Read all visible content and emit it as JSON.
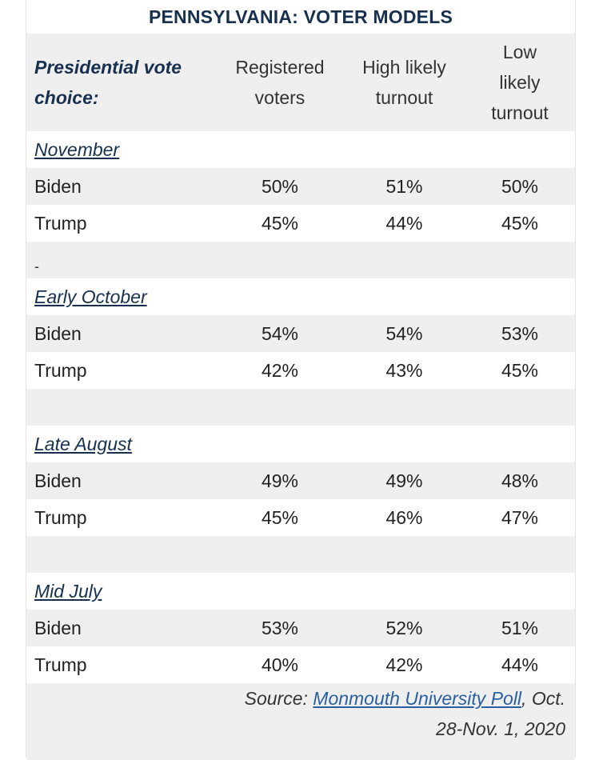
{
  "title": "PENNSYLVANIA: VOTER MODELS",
  "header": {
    "label_line1": "Presidential vote",
    "label_line2": "choice:",
    "col1_line1": "Registered",
    "col1_line2": "voters",
    "col2_line1": "High likely",
    "col2_line2": "turnout",
    "col3_line1": "Low",
    "col3_line2": "likely",
    "col3_line3": "turnout"
  },
  "periods": [
    {
      "name": "November",
      "rows": [
        {
          "candidate": "Biden",
          "registered": "50%",
          "high": "51%",
          "low": "50%"
        },
        {
          "candidate": "Trump",
          "registered": "45%",
          "high": "44%",
          "low": "45%"
        }
      ]
    },
    {
      "name": "Early October",
      "rows": [
        {
          "candidate": "Biden",
          "registered": "54%",
          "high": "54%",
          "low": "53%"
        },
        {
          "candidate": "Trump",
          "registered": "42%",
          "high": "43%",
          "low": "45%"
        }
      ]
    },
    {
      "name": "Late August",
      "rows": [
        {
          "candidate": "Biden",
          "registered": "49%",
          "high": "49%",
          "low": "48%"
        },
        {
          "candidate": "Trump",
          "registered": "45%",
          "high": "46%",
          "low": "47%"
        }
      ]
    },
    {
      "name": "Mid July",
      "rows": [
        {
          "candidate": "Biden",
          "registered": "53%",
          "high": "52%",
          "low": "51%"
        },
        {
          "candidate": "Trump",
          "registered": "40%",
          "high": "42%",
          "low": "44%"
        }
      ]
    }
  ],
  "separator_mark": "-",
  "source": {
    "prefix": "Source:",
    "link_text": "Monmouth University Poll",
    "suffix": ", Oct.",
    "line2": "28-Nov. 1, 2020"
  },
  "colors": {
    "title": "#17304f",
    "row_shade": "#efeff0",
    "link": "#2a5fa0"
  }
}
